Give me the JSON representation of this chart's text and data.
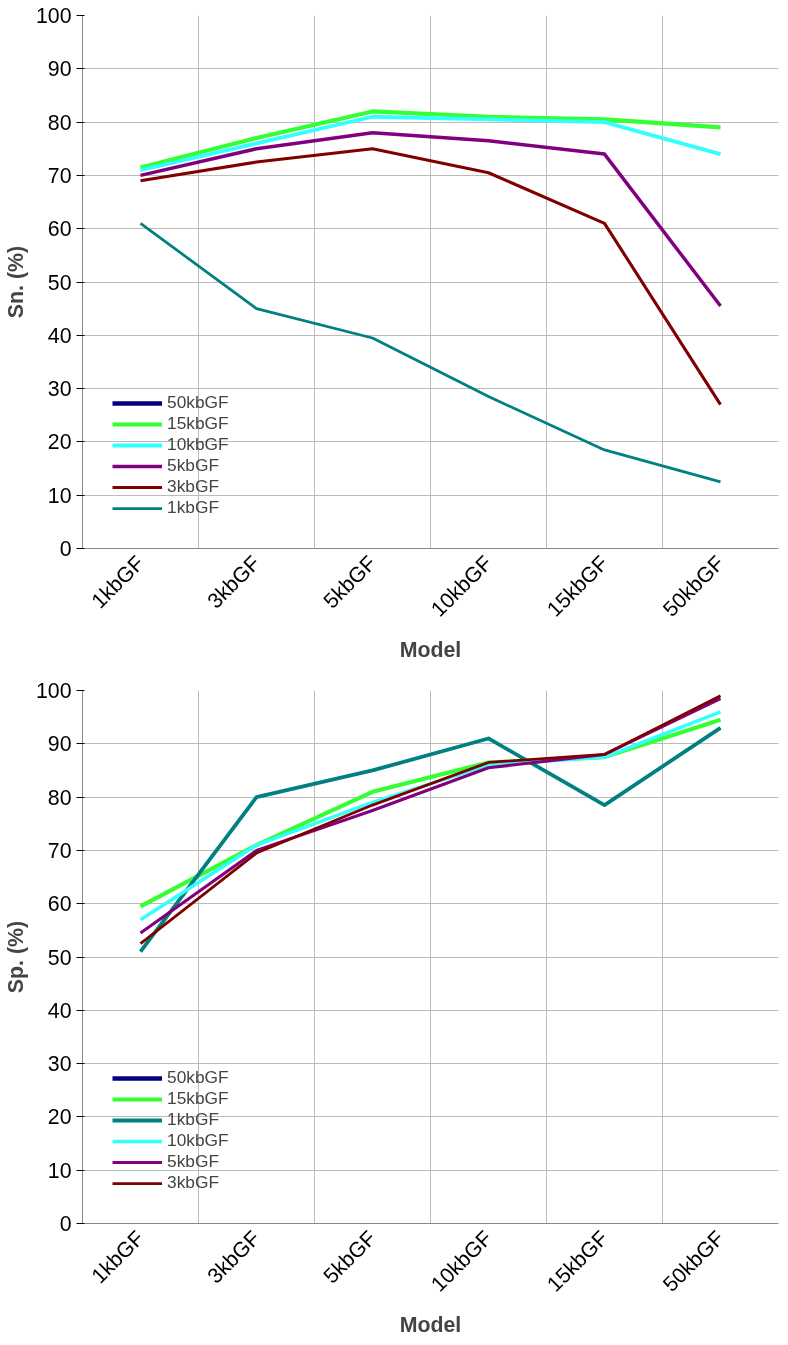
{
  "chart_data": [
    {
      "type": "line",
      "xlabel": "Model",
      "ylabel": "Sn. (%)",
      "categories": [
        "1kbGF",
        "3kbGF",
        "5kbGF",
        "10kbGF",
        "15kbGF",
        "50kbGF"
      ],
      "ylim": [
        0,
        100
      ],
      "yticks": [
        0,
        10,
        20,
        30,
        40,
        50,
        60,
        70,
        80,
        90,
        100
      ],
      "grid": true,
      "legend": "bottom left",
      "series": [
        {
          "name": "50kbGF",
          "color": "#000080",
          "values": [
            null,
            null,
            null,
            null,
            null,
            null
          ]
        },
        {
          "name": "15kbGF",
          "color": "#33ff33",
          "values": [
            71.5,
            77,
            82,
            81,
            80.5,
            79
          ]
        },
        {
          "name": "10kbGF",
          "color": "#33ffff",
          "values": [
            71,
            76,
            81,
            80.5,
            80,
            74
          ]
        },
        {
          "name": "5kbGF",
          "color": "#800080",
          "values": [
            70,
            75,
            78,
            76.5,
            74,
            45.5
          ]
        },
        {
          "name": "3kbGF",
          "color": "#800000",
          "values": [
            69,
            72.5,
            75,
            70.5,
            61,
            27
          ]
        },
        {
          "name": "1kbGF",
          "color": "#008080",
          "values": [
            61,
            45,
            39.5,
            28.5,
            18.5,
            12.5
          ]
        }
      ]
    },
    {
      "type": "line",
      "xlabel": "Model",
      "ylabel": "Sp. (%)",
      "categories": [
        "1kbGF",
        "3kbGF",
        "5kbGF",
        "10kbGF",
        "15kbGF",
        "50kbGF"
      ],
      "ylim": [
        0,
        100
      ],
      "yticks": [
        0,
        10,
        20,
        30,
        40,
        50,
        60,
        70,
        80,
        90,
        100
      ],
      "grid": true,
      "legend": "bottom left",
      "series": [
        {
          "name": "50kbGF",
          "color": "#000080",
          "values": [
            null,
            null,
            null,
            null,
            null,
            null
          ]
        },
        {
          "name": "15kbGF",
          "color": "#33ff33",
          "values": [
            59.5,
            71,
            81,
            86.5,
            87.5,
            94.5
          ]
        },
        {
          "name": "1kbGF",
          "color": "#008080",
          "values": [
            51,
            80,
            85,
            91,
            78.5,
            93
          ]
        },
        {
          "name": "10kbGF",
          "color": "#33ffff",
          "values": [
            57,
            71,
            79,
            86,
            87.5,
            96
          ]
        },
        {
          "name": "5kbGF",
          "color": "#800080",
          "values": [
            54.5,
            70,
            77.5,
            85.5,
            88,
            98.5
          ]
        },
        {
          "name": "3kbGF",
          "color": "#800000",
          "values": [
            52.5,
            69.5,
            78.5,
            86.5,
            88,
            99
          ]
        }
      ]
    }
  ]
}
